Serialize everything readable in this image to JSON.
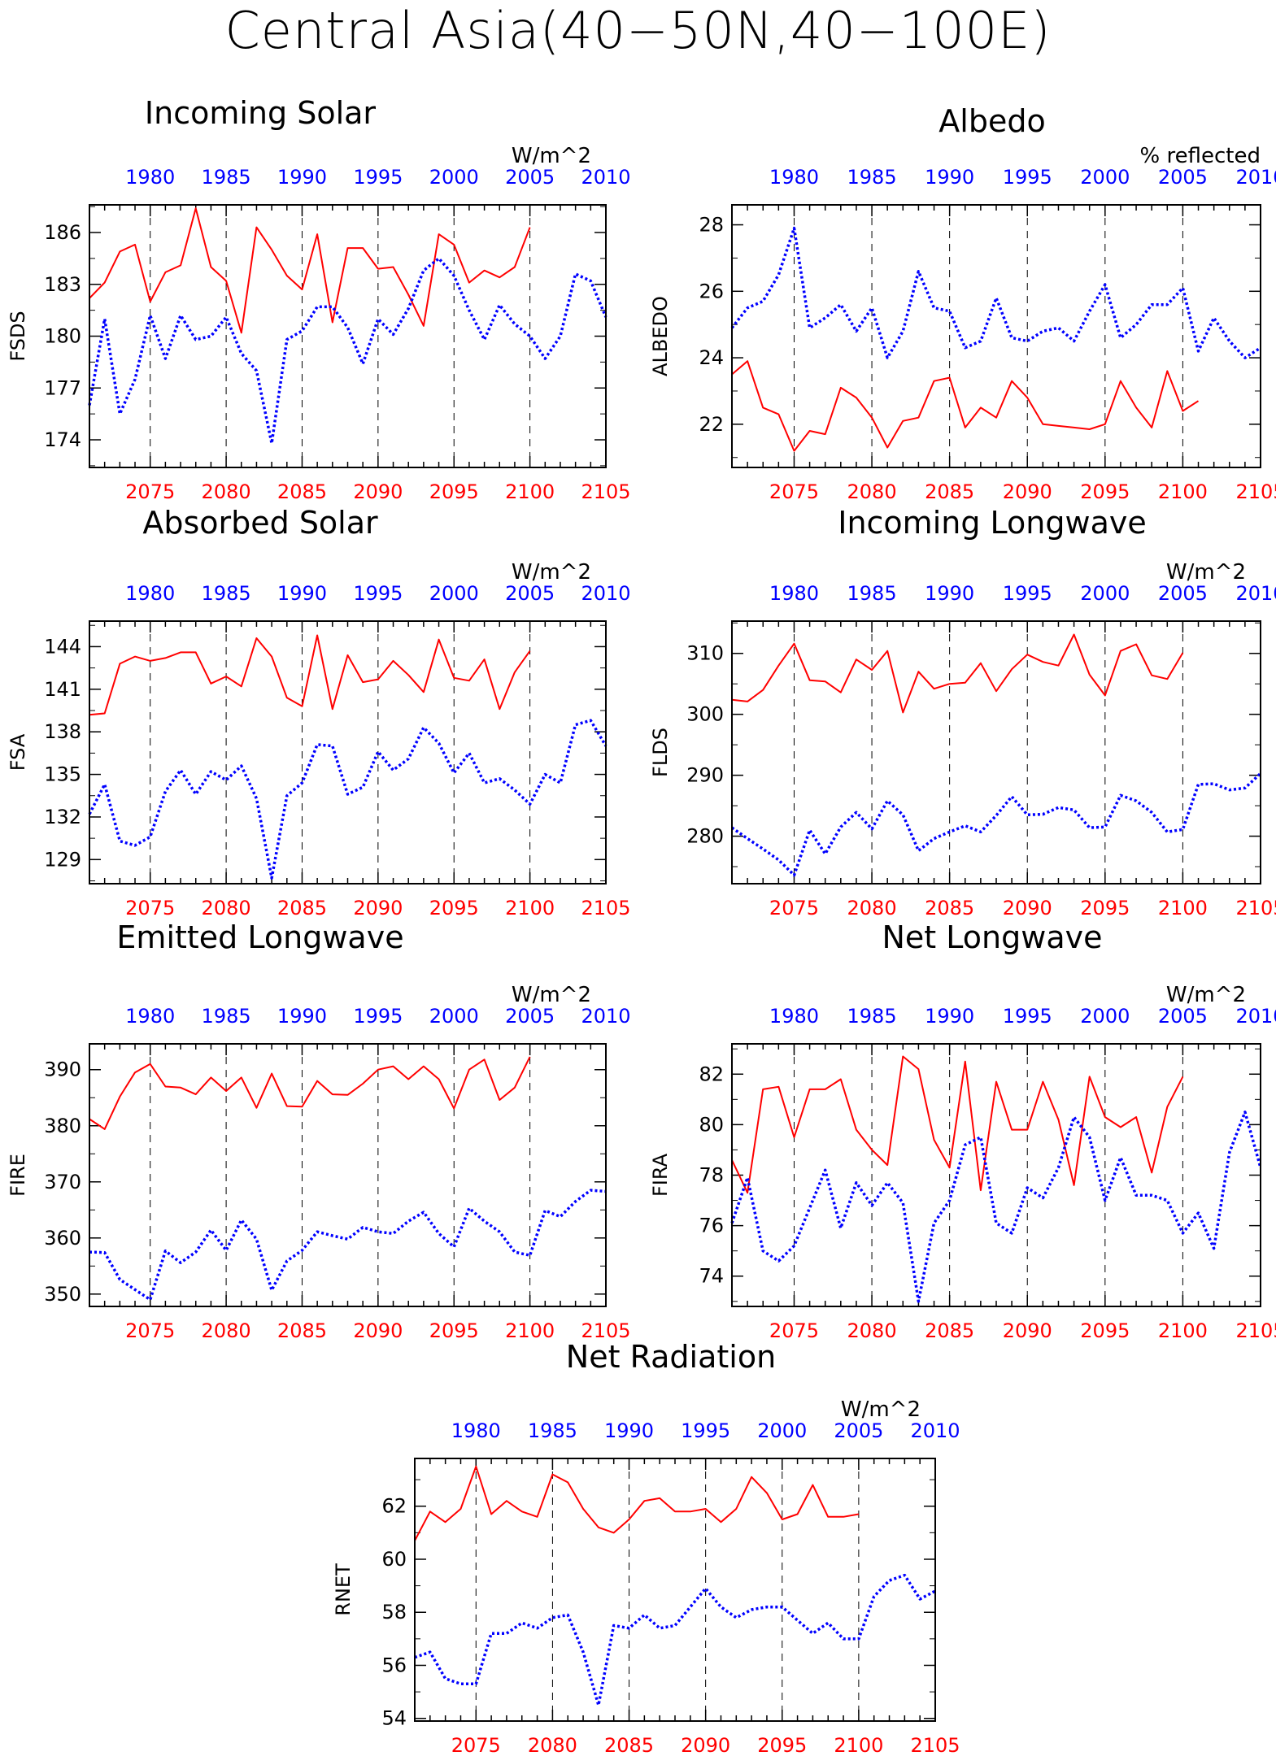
{
  "title": "Central Asia(40−50N,40−100E)",
  "colors": {
    "future": "#ff0000",
    "past": "#0000ff",
    "axis": "#000000"
  },
  "chart_data": [
    {
      "type": "line",
      "id": "fsds",
      "title": "Incoming Solar",
      "ylabel": "FSDS",
      "unit": "W/m^2",
      "ylim": [
        172.4,
        187.6
      ],
      "yticks": [
        174,
        177,
        180,
        183,
        186
      ],
      "x_bottom": [
        2071,
        2105
      ],
      "x_bottom_ticks": [
        2075,
        2080,
        2085,
        2090,
        2095,
        2100,
        2105
      ],
      "x_top": [
        1976,
        2010
      ],
      "x_top_ticks": [
        1980,
        1985,
        1990,
        1995,
        2000,
        2005,
        2010
      ],
      "grid_x": [
        2075,
        2080,
        2085,
        2090,
        2095,
        2100
      ],
      "series": [
        {
          "axis": "bottom",
          "style": "solid",
          "color": "#ff0000",
          "x_start": 2071,
          "values": [
            182.2,
            183.1,
            184.9,
            185.3,
            182.0,
            183.7,
            184.1,
            187.4,
            184.0,
            183.2,
            180.2,
            186.3,
            185.0,
            183.5,
            182.7,
            185.9,
            180.8,
            185.1,
            185.1,
            183.9,
            184.0,
            182.4,
            180.6,
            185.9,
            185.3,
            183.1,
            183.8,
            183.4,
            184.0,
            186.3
          ]
        },
        {
          "axis": "top",
          "style": "dotted",
          "color": "#0000ff",
          "x_start": 1976,
          "values": [
            176.0,
            181.0,
            175.5,
            177.5,
            181.2,
            178.7,
            181.2,
            179.8,
            180.0,
            181.1,
            179.0,
            178.0,
            173.8,
            179.8,
            180.3,
            181.7,
            181.7,
            180.5,
            178.4,
            181.0,
            180.1,
            181.6,
            183.8,
            184.5,
            183.5,
            181.5,
            179.8,
            181.8,
            180.7,
            180.0,
            178.7,
            180.0,
            183.6,
            183.2,
            181.1
          ]
        }
      ]
    },
    {
      "type": "line",
      "id": "albedo",
      "title": "Albedo",
      "ylabel": "ALBEDO",
      "unit": "% reflected",
      "ylim": [
        20.7,
        28.6
      ],
      "yticks": [
        22.0,
        24.0,
        26.0,
        28.0
      ],
      "x_bottom": [
        2071,
        2105
      ],
      "x_bottom_ticks": [
        2075,
        2080,
        2085,
        2090,
        2095,
        2100,
        2105
      ],
      "x_top": [
        1976,
        2010
      ],
      "x_top_ticks": [
        1980,
        1985,
        1990,
        1995,
        2000,
        2005,
        2010
      ],
      "grid_x": [
        2075,
        2080,
        2085,
        2090,
        2095,
        2100
      ],
      "series": [
        {
          "axis": "bottom",
          "style": "solid",
          "color": "#ff0000",
          "x_start": 2071,
          "values": [
            23.5,
            23.9,
            22.5,
            22.3,
            21.2,
            21.8,
            21.7,
            23.1,
            22.8,
            22.2,
            21.3,
            22.1,
            22.2,
            23.3,
            23.4,
            21.9,
            22.5,
            22.2,
            23.3,
            22.8,
            22.0,
            21.95,
            21.9,
            21.85,
            22.0,
            23.3,
            22.5,
            21.9,
            23.6,
            22.4,
            22.7
          ]
        },
        {
          "axis": "top",
          "style": "dotted",
          "color": "#0000ff",
          "x_start": 1976,
          "values": [
            24.9,
            25.5,
            25.7,
            26.5,
            27.9,
            24.9,
            25.2,
            25.6,
            24.8,
            25.5,
            24.0,
            24.8,
            26.6,
            25.5,
            25.4,
            24.3,
            24.5,
            25.8,
            24.6,
            24.5,
            24.8,
            24.9,
            24.5,
            25.4,
            26.2,
            24.6,
            25.0,
            25.6,
            25.6,
            26.1,
            24.2,
            25.2,
            24.5,
            24.0,
            24.3
          ]
        }
      ]
    },
    {
      "type": "line",
      "id": "fsa",
      "title": "Absorbed Solar",
      "ylabel": "FSA",
      "unit": "W/m^2",
      "ylim": [
        127.3,
        145.8
      ],
      "yticks": [
        129,
        132,
        135,
        138,
        141,
        144
      ],
      "x_bottom": [
        2071,
        2105
      ],
      "x_bottom_ticks": [
        2075,
        2080,
        2085,
        2090,
        2095,
        2100,
        2105
      ],
      "x_top": [
        1976,
        2010
      ],
      "x_top_ticks": [
        1980,
        1985,
        1990,
        1995,
        2000,
        2005,
        2010
      ],
      "grid_x": [
        2075,
        2080,
        2085,
        2090,
        2095,
        2100
      ],
      "series": [
        {
          "axis": "bottom",
          "style": "solid",
          "color": "#ff0000",
          "x_start": 2071,
          "values": [
            139.2,
            139.3,
            142.8,
            143.3,
            143.0,
            143.2,
            143.6,
            143.6,
            141.4,
            141.9,
            141.2,
            144.6,
            143.3,
            140.4,
            139.8,
            144.8,
            139.6,
            143.4,
            141.5,
            141.7,
            143.0,
            142.0,
            140.8,
            144.5,
            141.8,
            141.6,
            143.1,
            139.6,
            142.2,
            143.7
          ]
        },
        {
          "axis": "top",
          "style": "dotted",
          "color": "#0000ff",
          "x_start": 1976,
          "values": [
            132.2,
            134.3,
            130.3,
            130.0,
            130.6,
            133.8,
            135.3,
            133.6,
            135.2,
            134.6,
            135.6,
            133.3,
            127.7,
            133.5,
            134.4,
            137.1,
            137.0,
            133.6,
            134.1,
            136.6,
            135.3,
            136.1,
            138.3,
            137.2,
            135.1,
            136.5,
            134.4,
            134.7,
            133.9,
            132.9,
            135.0,
            134.4,
            138.5,
            138.8,
            137.0
          ]
        }
      ]
    },
    {
      "type": "line",
      "id": "flds",
      "title": "Incoming Longwave",
      "ylabel": "FLDS",
      "unit": "W/m^2",
      "ylim": [
        272.2,
        315.3
      ],
      "yticks": [
        280,
        290,
        300,
        310
      ],
      "x_bottom": [
        2071,
        2105
      ],
      "x_bottom_ticks": [
        2075,
        2080,
        2085,
        2090,
        2095,
        2100,
        2105
      ],
      "x_top": [
        1976,
        2010
      ],
      "x_top_ticks": [
        1980,
        1985,
        1990,
        1995,
        2000,
        2005,
        2010
      ],
      "grid_x": [
        2075,
        2080,
        2085,
        2090,
        2095,
        2100
      ],
      "series": [
        {
          "axis": "bottom",
          "style": "solid",
          "color": "#ff0000",
          "x_start": 2071,
          "values": [
            302.4,
            302.1,
            304.0,
            308.0,
            311.6,
            305.6,
            305.4,
            303.6,
            309.0,
            307.3,
            310.4,
            300.3,
            307.0,
            304.2,
            305.0,
            305.2,
            308.4,
            303.8,
            307.4,
            309.8,
            308.6,
            308.0,
            313.1,
            306.5,
            303.1,
            310.4,
            311.5,
            306.4,
            305.8,
            310.1
          ]
        },
        {
          "axis": "top",
          "style": "dotted",
          "color": "#0000ff",
          "x_start": 1976,
          "values": [
            281.4,
            279.6,
            277.9,
            276.1,
            273.6,
            281.0,
            277.1,
            281.5,
            283.9,
            281.2,
            285.8,
            283.5,
            277.6,
            279.6,
            280.7,
            281.7,
            280.7,
            283.4,
            286.5,
            283.5,
            283.6,
            284.7,
            284.3,
            281.4,
            281.5,
            286.7,
            285.8,
            283.9,
            280.7,
            281.1,
            288.5,
            288.6,
            287.6,
            287.9,
            290.3
          ]
        }
      ]
    },
    {
      "type": "line",
      "id": "fire",
      "title": "Emitted Longwave",
      "ylabel": "FIRE",
      "unit": "W/m^2",
      "ylim": [
        347.8,
        394.6
      ],
      "yticks": [
        350,
        360,
        370,
        380,
        390
      ],
      "x_bottom": [
        2071,
        2105
      ],
      "x_bottom_ticks": [
        2075,
        2080,
        2085,
        2090,
        2095,
        2100,
        2105
      ],
      "x_top": [
        1976,
        2010
      ],
      "x_top_ticks": [
        1980,
        1985,
        1990,
        1995,
        2000,
        2005,
        2010
      ],
      "grid_x": [
        2075,
        2080,
        2085,
        2090,
        2095,
        2100
      ],
      "series": [
        {
          "axis": "bottom",
          "style": "solid",
          "color": "#ff0000",
          "x_start": 2071,
          "values": [
            381.2,
            379.4,
            385.2,
            389.5,
            391.0,
            387.0,
            386.8,
            385.6,
            388.6,
            386.2,
            388.6,
            383.2,
            389.3,
            383.5,
            383.4,
            388.0,
            385.6,
            385.5,
            387.5,
            390.0,
            390.6,
            388.3,
            390.6,
            388.3,
            383.1,
            390.0,
            391.8,
            384.6,
            386.8,
            392.3
          ]
        },
        {
          "axis": "top",
          "style": "dotted",
          "color": "#0000ff",
          "x_start": 1976,
          "values": [
            357.5,
            357.4,
            352.6,
            350.8,
            349.0,
            357.7,
            355.6,
            357.5,
            361.4,
            357.8,
            363.2,
            359.8,
            350.7,
            355.9,
            357.8,
            361.1,
            360.4,
            359.8,
            361.9,
            361.1,
            360.8,
            363.0,
            364.6,
            360.8,
            358.4,
            365.3,
            363.0,
            361.1,
            357.5,
            356.9,
            364.9,
            363.8,
            366.5,
            368.5,
            368.3
          ]
        }
      ]
    },
    {
      "type": "line",
      "id": "fira",
      "title": "Net Longwave",
      "ylabel": "FIRA",
      "unit": "W/m^2",
      "ylim": [
        72.8,
        83.2
      ],
      "yticks": [
        74.0,
        76.0,
        78.0,
        80.0,
        82.0
      ],
      "x_bottom": [
        2071,
        2105
      ],
      "x_bottom_ticks": [
        2075,
        2080,
        2085,
        2090,
        2095,
        2100,
        2105
      ],
      "x_top": [
        1976,
        2010
      ],
      "x_top_ticks": [
        1980,
        1985,
        1990,
        1995,
        2000,
        2005,
        2010
      ],
      "grid_x": [
        2075,
        2080,
        2085,
        2090,
        2095,
        2100
      ],
      "series": [
        {
          "axis": "bottom",
          "style": "solid",
          "color": "#ff0000",
          "x_start": 2071,
          "values": [
            78.6,
            77.3,
            81.4,
            81.5,
            79.5,
            81.4,
            81.4,
            81.8,
            79.8,
            79.0,
            78.4,
            82.7,
            82.2,
            79.4,
            78.3,
            82.5,
            77.4,
            81.7,
            79.8,
            79.8,
            81.7,
            80.2,
            77.6,
            81.9,
            80.3,
            79.9,
            80.3,
            78.1,
            80.7,
            81.9
          ]
        },
        {
          "axis": "top",
          "style": "dotted",
          "color": "#0000ff",
          "x_start": 1976,
          "values": [
            76.1,
            77.9,
            75.0,
            74.6,
            75.2,
            76.7,
            78.2,
            75.9,
            77.7,
            76.8,
            77.7,
            76.9,
            73.0,
            76.1,
            77.0,
            79.2,
            79.5,
            76.1,
            75.7,
            77.5,
            77.1,
            78.3,
            80.3,
            79.5,
            77.0,
            78.7,
            77.2,
            77.2,
            77.0,
            75.7,
            76.5,
            75.1,
            78.9,
            80.5,
            78.3
          ]
        }
      ]
    },
    {
      "type": "line",
      "id": "rnet",
      "title": "Net Radiation",
      "ylabel": "RNET",
      "unit": "W/m^2",
      "ylim": [
        53.9,
        63.8
      ],
      "yticks": [
        54.0,
        56.0,
        58.0,
        60.0,
        62.0
      ],
      "x_bottom": [
        2071,
        2105
      ],
      "x_bottom_ticks": [
        2075,
        2080,
        2085,
        2090,
        2095,
        2100,
        2105
      ],
      "x_top": [
        1976,
        2010
      ],
      "x_top_ticks": [
        1980,
        1985,
        1990,
        1995,
        2000,
        2005,
        2010
      ],
      "grid_x": [
        2075,
        2080,
        2085,
        2090,
        2095,
        2100
      ],
      "series": [
        {
          "axis": "bottom",
          "style": "solid",
          "color": "#ff0000",
          "x_start": 2071,
          "values": [
            60.7,
            61.8,
            61.4,
            61.9,
            63.5,
            61.7,
            62.2,
            61.8,
            61.6,
            63.2,
            62.9,
            61.9,
            61.2,
            61.0,
            61.5,
            62.2,
            62.3,
            61.8,
            61.8,
            61.9,
            61.4,
            61.9,
            63.1,
            62.5,
            61.5,
            61.7,
            62.8,
            61.6,
            61.6,
            61.7
          ]
        },
        {
          "axis": "top",
          "style": "dotted",
          "color": "#0000ff",
          "x_start": 1976,
          "values": [
            56.3,
            56.5,
            55.5,
            55.3,
            55.3,
            57.2,
            57.2,
            57.6,
            57.4,
            57.8,
            57.9,
            56.5,
            54.5,
            57.5,
            57.4,
            57.9,
            57.4,
            57.5,
            58.2,
            58.9,
            58.2,
            57.8,
            58.1,
            58.2,
            58.2,
            57.7,
            57.2,
            57.6,
            57.0,
            57.0,
            58.6,
            59.2,
            59.4,
            58.5,
            58.8
          ]
        }
      ]
    }
  ]
}
